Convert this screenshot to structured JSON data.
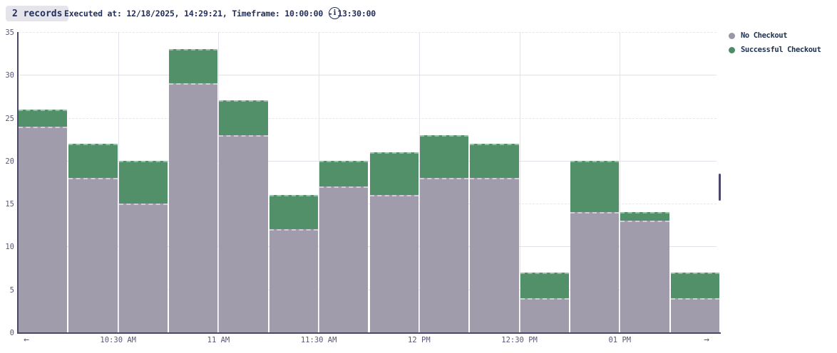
{
  "header": {
    "records_badge": "2 records",
    "executed_text": "Executed at: 12/18/2025, 14:29:21, Timeframe: 10:00:00 - 13:30:00",
    "info_glyph": "i"
  },
  "legend": {
    "position": "top-right",
    "items": [
      {
        "label": "No Checkout",
        "color": "#9b96a7"
      },
      {
        "label": "Successful Checkout",
        "color": "#4e8c67"
      }
    ]
  },
  "chart_data": {
    "type": "bar",
    "stacked": true,
    "title": "",
    "xlabel": "",
    "ylabel": "",
    "timeframe": "10:00:00 - 13:30:00",
    "bucket_minutes": 15,
    "categories": [
      "10:00",
      "10:15",
      "10:30",
      "10:45",
      "11:00",
      "11:15",
      "11:30",
      "11:45",
      "12:00",
      "12:15",
      "12:30",
      "12:45",
      "13:00",
      "13:15"
    ],
    "series": [
      {
        "name": "No Checkout",
        "color": "#a19cab",
        "values": [
          24,
          18,
          15,
          29,
          23,
          12,
          17,
          16,
          18,
          18,
          4,
          14,
          13,
          4
        ]
      },
      {
        "name": "Successful Checkout",
        "color": "#529069",
        "values": [
          2,
          4,
          5,
          4,
          4,
          4,
          3,
          5,
          5,
          4,
          3,
          6,
          1,
          3
        ]
      }
    ],
    "stack_totals": [
      26,
      22,
      20,
      33,
      27,
      16,
      20,
      21,
      23,
      22,
      7,
      20,
      14,
      7
    ],
    "ylim": [
      0,
      35
    ],
    "y_ticks": [
      0,
      5,
      10,
      15,
      20,
      25,
      30,
      35
    ],
    "x_tick_labels": [
      "10:30 AM",
      "11 AM",
      "11:30 AM",
      "12 PM",
      "12:30 PM",
      "01 PM"
    ],
    "grid": {
      "horizontal_solid": [
        10,
        20,
        30
      ],
      "horizontal_dashed": [
        5,
        15,
        25,
        35
      ],
      "vertical_at_ticks": true
    },
    "nav_arrows": {
      "left": "←",
      "right": "→"
    }
  },
  "colors": {
    "axis": "#4b4766",
    "grid_solid": "#e2e1ea",
    "grid_dashed": "#e7e6ef",
    "tick_text": "#5b5775",
    "header_text": "#232f5c",
    "badge_bg": "#e4e4ea",
    "scrollbar": "#4a4768"
  }
}
